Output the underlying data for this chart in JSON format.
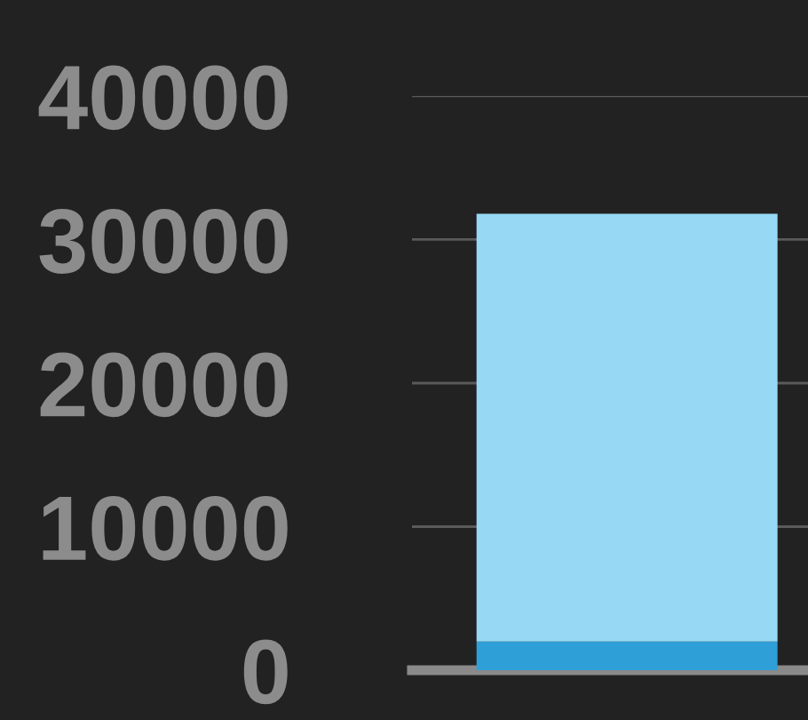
{
  "chart_data": {
    "type": "bar",
    "stacked": true,
    "categories": [
      null
    ],
    "series": [
      {
        "color": "#2f9fd8",
        "values": [
          2000
        ]
      },
      {
        "color": "#97d9f5",
        "values": [
          29800
        ]
      }
    ],
    "ylim": [
      0,
      40000
    ],
    "yticks": [
      0,
      10000,
      20000,
      30000,
      40000
    ],
    "grid": "y",
    "legend": false
  }
}
